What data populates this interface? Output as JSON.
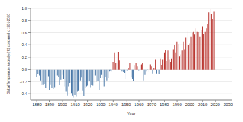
{
  "chart_data": {
    "type": "bar",
    "x_label": "Year",
    "y_label": "Global Temperature Anomaly (°C) compared to 1901-2000",
    "x": [
      1880,
      1881,
      1882,
      1883,
      1884,
      1885,
      1886,
      1887,
      1888,
      1889,
      1890,
      1891,
      1892,
      1893,
      1894,
      1895,
      1896,
      1897,
      1898,
      1899,
      1900,
      1901,
      1902,
      1903,
      1904,
      1905,
      1906,
      1907,
      1908,
      1909,
      1910,
      1911,
      1912,
      1913,
      1914,
      1915,
      1916,
      1917,
      1918,
      1919,
      1920,
      1921,
      1922,
      1923,
      1924,
      1925,
      1926,
      1927,
      1928,
      1929,
      1930,
      1931,
      1932,
      1933,
      1934,
      1935,
      1936,
      1937,
      1938,
      1939,
      1940,
      1941,
      1942,
      1943,
      1944,
      1945,
      1946,
      1947,
      1948,
      1949,
      1950,
      1951,
      1952,
      1953,
      1954,
      1955,
      1956,
      1957,
      1958,
      1959,
      1960,
      1961,
      1962,
      1963,
      1964,
      1965,
      1966,
      1967,
      1968,
      1969,
      1970,
      1971,
      1972,
      1973,
      1974,
      1975,
      1976,
      1977,
      1978,
      1979,
      1980,
      1981,
      1982,
      1983,
      1984,
      1985,
      1986,
      1987,
      1988,
      1989,
      1990,
      1991,
      1992,
      1993,
      1994,
      1995,
      1996,
      1997,
      1998,
      1999,
      2000,
      2001,
      2002,
      2003,
      2004,
      2005,
      2006,
      2007,
      2008,
      2009,
      2010,
      2011,
      2012,
      2013,
      2014,
      2015,
      2016,
      2017,
      2018,
      2019
    ],
    "values": [
      -0.12,
      -0.08,
      -0.1,
      -0.18,
      -0.26,
      -0.25,
      -0.24,
      -0.3,
      -0.18,
      -0.11,
      -0.33,
      -0.25,
      -0.3,
      -0.32,
      -0.29,
      -0.23,
      -0.1,
      -0.12,
      -0.26,
      -0.17,
      -0.09,
      -0.15,
      -0.28,
      -0.36,
      -0.43,
      -0.28,
      -0.22,
      -0.39,
      -0.43,
      -0.46,
      -0.42,
      -0.45,
      -0.36,
      -0.35,
      -0.18,
      -0.13,
      -0.35,
      -0.44,
      -0.3,
      -0.28,
      -0.27,
      -0.19,
      -0.29,
      -0.26,
      -0.27,
      -0.22,
      -0.1,
      -0.2,
      -0.19,
      -0.34,
      -0.14,
      -0.09,
      -0.14,
      -0.28,
      -0.12,
      -0.18,
      -0.14,
      -0.03,
      -0.02,
      -0.03,
      0.12,
      0.27,
      0.11,
      0.1,
      0.28,
      0.15,
      -0.01,
      -0.03,
      -0.05,
      -0.06,
      -0.16,
      -0.02,
      0.03,
      0.1,
      -0.13,
      -0.15,
      -0.19,
      0.06,
      0.11,
      0.05,
      -0.02,
      0.07,
      0.08,
      0.1,
      -0.18,
      -0.09,
      -0.03,
      -0.01,
      -0.04,
      0.08,
      0.05,
      -0.07,
      0.02,
      0.16,
      -0.07,
      -0.01,
      -0.08,
      0.18,
      0.07,
      0.16,
      0.27,
      0.32,
      0.14,
      0.31,
      0.16,
      0.12,
      0.18,
      0.33,
      0.39,
      0.27,
      0.45,
      0.41,
      0.22,
      0.24,
      0.31,
      0.45,
      0.33,
      0.52,
      0.63,
      0.4,
      0.42,
      0.54,
      0.6,
      0.62,
      0.57,
      0.67,
      0.62,
      0.61,
      0.54,
      0.64,
      0.7,
      0.58,
      0.62,
      0.67,
      0.74,
      0.93,
      0.99,
      0.91,
      0.83,
      0.95
    ],
    "colors": [
      "#4a78a8",
      "#4a78a8",
      "#4a78a8",
      "#4a78a8",
      "#4a78a8",
      "#4a78a8",
      "#4a78a8",
      "#4a78a8",
      "#4a78a8",
      "#4a78a8",
      "#4a78a8",
      "#4a78a8",
      "#4a78a8",
      "#4a78a8",
      "#4a78a8",
      "#4a78a8",
      "#4a78a8",
      "#4a78a8",
      "#4a78a8",
      "#4a78a8",
      "#4a78a8",
      "#4a78a8",
      "#4a78a8",
      "#4a78a8",
      "#4a78a8",
      "#4a78a8",
      "#4a78a8",
      "#4a78a8",
      "#4a78a8",
      "#4a78a8",
      "#4a78a8",
      "#4a78a8",
      "#4a78a8",
      "#4a78a8",
      "#4a78a8",
      "#4a78a8",
      "#4a78a8",
      "#4a78a8",
      "#4a78a8",
      "#4a78a8",
      "#4a78a8",
      "#4a78a8",
      "#4a78a8",
      "#4a78a8",
      "#4a78a8",
      "#4a78a8",
      "#4a78a8",
      "#4a78a8",
      "#4a78a8",
      "#4a78a8",
      "#4a78a8",
      "#4a78a8",
      "#4a78a8",
      "#4a78a8",
      "#4a78a8",
      "#4a78a8",
      "#4a78a8",
      "#4a78a8",
      "#4a78a8",
      "#4a78a8",
      "#b8322c",
      "#b8322c",
      "#b8322c",
      "#b8322c",
      "#b8322c",
      "#b8322c",
      "#4a78a8",
      "#4a78a8",
      "#4a78a8",
      "#4a78a8",
      "#4a78a8",
      "#4a78a8",
      "#b8322c",
      "#b8322c",
      "#4a78a8",
      "#4a78a8",
      "#4a78a8",
      "#b8322c",
      "#b8322c",
      "#b8322c",
      "#4a78a8",
      "#b8322c",
      "#b8322c",
      "#b8322c",
      "#4a78a8",
      "#4a78a8",
      "#4a78a8",
      "#4a78a8",
      "#4a78a8",
      "#b8322c",
      "#b8322c",
      "#4a78a8",
      "#b8322c",
      "#b8322c",
      "#4a78a8",
      "#4a78a8",
      "#4a78a8",
      "#b8322c",
      "#b8322c",
      "#b8322c",
      "#b8322c",
      "#b8322c",
      "#b8322c",
      "#b8322c",
      "#b8322c",
      "#b8322c",
      "#b8322c",
      "#b8322c",
      "#b8322c",
      "#b8322c",
      "#b8322c",
      "#b8322c",
      "#b8322c",
      "#b8322c",
      "#b8322c",
      "#b8322c",
      "#b8322c",
      "#b8322c",
      "#b8322c",
      "#b8322c",
      "#b8322c",
      "#b8322c",
      "#b8322c",
      "#b8322c",
      "#b8322c",
      "#b8322c",
      "#b8322c",
      "#b8322c",
      "#b8322c",
      "#b8322c",
      "#b8322c",
      "#b8322c",
      "#b8322c",
      "#b8322c",
      "#b8322c",
      "#b8322c",
      "#b8322c",
      "#b8322c",
      "#b8322c",
      "#b8322c"
    ],
    "xlim": [
      1875,
      2033
    ],
    "xticks": [
      1880,
      1890,
      1900,
      1910,
      1920,
      1930,
      1940,
      1950,
      1960,
      1970,
      1980,
      1990,
      2000,
      2010,
      2020,
      2030
    ],
    "ylim": [
      -0.5,
      1.0
    ],
    "yticks": [
      -0.4,
      -0.2,
      {
        "value": 0,
        "label": "0.0"
      },
      0.2,
      0.4,
      0.6,
      0.8,
      {
        "value": 1,
        "label": "1.0"
      }
    ],
    "grid": true
  }
}
